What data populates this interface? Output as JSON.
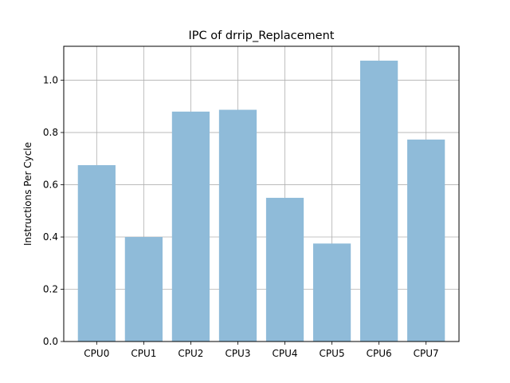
{
  "chart_data": {
    "type": "bar",
    "title": "IPC of drrip_Replacement",
    "xlabel": "",
    "ylabel": "Instructions Per Cycle",
    "categories": [
      "CPU0",
      "CPU1",
      "CPU2",
      "CPU3",
      "CPU4",
      "CPU5",
      "CPU6",
      "CPU7"
    ],
    "values": [
      0.675,
      0.4,
      0.88,
      0.887,
      0.55,
      0.375,
      1.075,
      0.773
    ],
    "ylim": [
      0,
      1.13
    ],
    "yticks": [
      0.0,
      0.2,
      0.4,
      0.6,
      0.8,
      1.0
    ],
    "ytick_labels": [
      "0.0",
      "0.2",
      "0.4",
      "0.6",
      "0.8",
      "1.0"
    ],
    "grid": true,
    "bar_color": "#8fbbd9",
    "grid_color": "#b0b0b0"
  }
}
